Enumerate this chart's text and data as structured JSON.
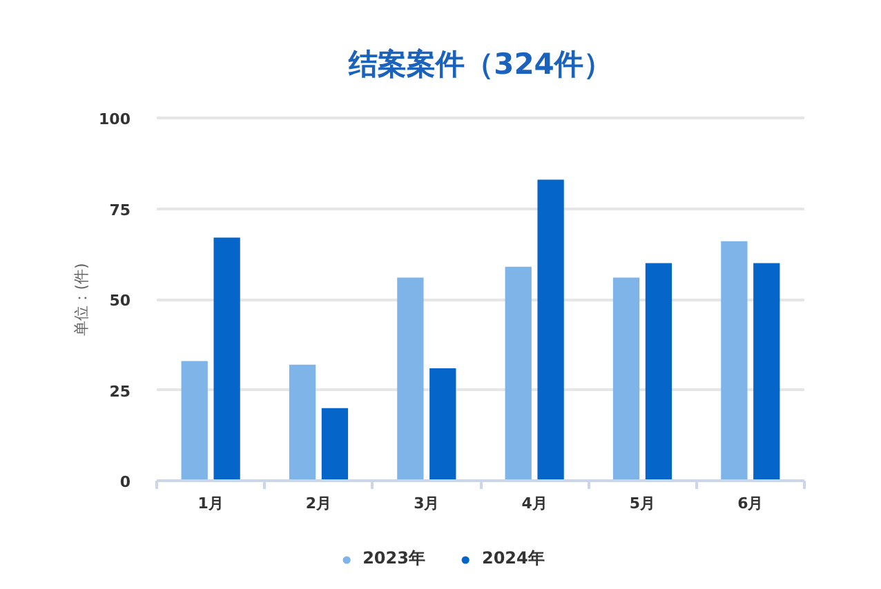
{
  "chart_data": {
    "type": "bar",
    "title": "结案案件（324件）",
    "ylabel": "单位：(件)",
    "categories": [
      "1月",
      "2月",
      "3月",
      "4月",
      "5月",
      "6月"
    ],
    "series": [
      {
        "name": "2023年",
        "color": "#7eb4e8",
        "values": [
          33,
          32,
          56,
          59,
          56,
          66
        ]
      },
      {
        "name": "2024年",
        "color": "#0565c8",
        "values": [
          67,
          20,
          31,
          83,
          60,
          60
        ]
      }
    ],
    "ylim": [
      0,
      100
    ],
    "yticks": [
      0,
      25,
      50,
      75,
      100
    ],
    "grid": "y",
    "legend": "bottom"
  }
}
